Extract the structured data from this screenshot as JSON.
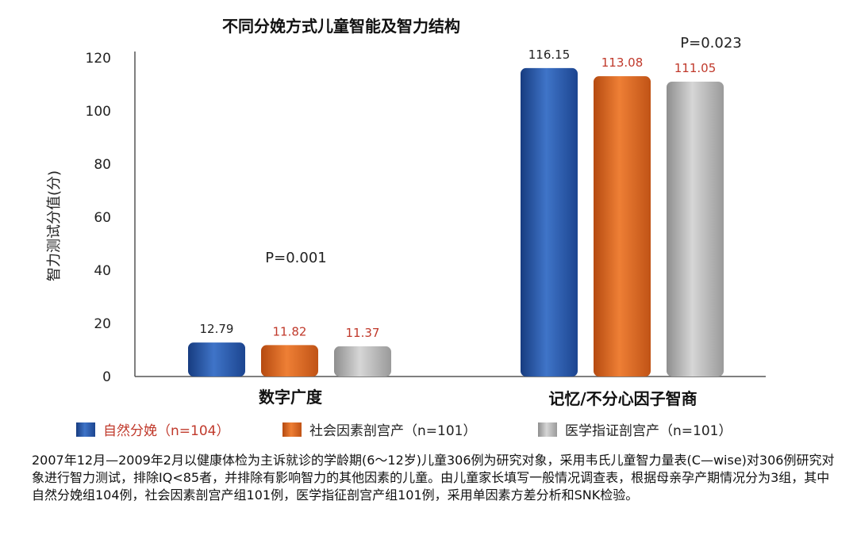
{
  "chart_data": {
    "type": "bar",
    "title": "不同分娩方式儿童智能及智力结构",
    "xlabel": "",
    "ylabel": "智力测试分值(分)",
    "ylim": [
      0,
      120
    ],
    "yticks": [
      "0",
      "20",
      "40",
      "60",
      "80",
      "100",
      "120"
    ],
    "categories": [
      "数字广度",
      "记忆/不分心因子智商"
    ],
    "series": [
      {
        "name": "自然分娩（n=104）",
        "color": "#2a5aa8",
        "values": [
          12.79,
          116.15
        ],
        "labels": [
          "12.79",
          "116.15"
        ],
        "label_color": "#222222"
      },
      {
        "name": "社会因素剖宫产（n=101）",
        "color": "#d9651f",
        "values": [
          11.82,
          113.08
        ],
        "labels": [
          "11.82",
          "113.08"
        ],
        "label_color": "#c0392b"
      },
      {
        "name": "医学指证剖宫产（n=101）",
        "color": "#a8a8a8",
        "values": [
          11.37,
          111.05
        ],
        "labels": [
          "11.37",
          "111.05"
        ],
        "label_color": "#c0392b"
      }
    ],
    "annotations": [
      "P=0.001",
      "P=0.023"
    ],
    "legend_position": "bottom",
    "legend_text_colors": [
      "#c0392b",
      "#222222",
      "#222222"
    ],
    "grid": false
  },
  "caption": "2007年12月—2009年2月以健康体检为主诉就诊的学龄期(6～12岁)儿童306例为研究对象，采用韦氏儿童智力量表(C—wise)对306例研究对象进行智力测试，排除IQ<85者，并排除有影响智力的其他因素的儿童。由儿童家长填写一般情况调查表，根据母亲孕产期情况分为3组，其中自然分娩组104例，社会因素剖宫产组101例，医学指征剖宫产组101例，采用单因素方差分析和SNK检验。"
}
